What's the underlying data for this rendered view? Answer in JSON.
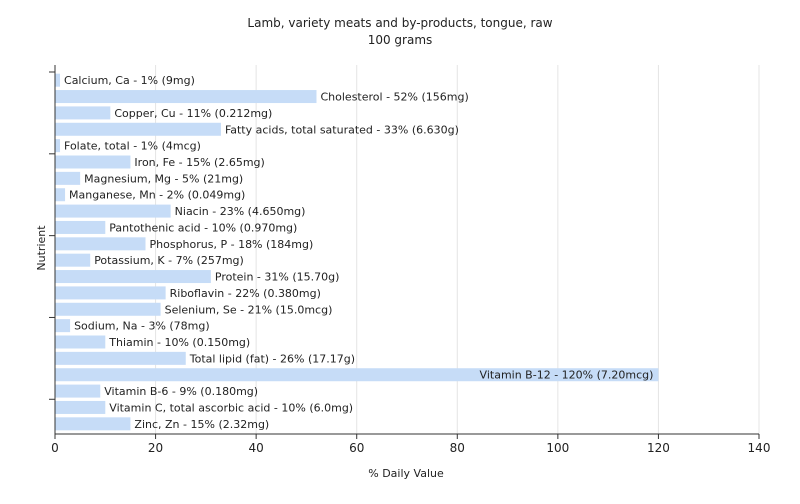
{
  "chart_data": {
    "type": "bar",
    "orientation": "horizontal",
    "title": "Lamb, variety meats and by-products, tongue, raw",
    "subtitle": "100 grams",
    "xlabel": "% Daily Value",
    "ylabel": "Nutrient",
    "xlim": [
      0,
      140
    ],
    "xticks": [
      0,
      20,
      40,
      60,
      80,
      100,
      120,
      140
    ],
    "grid": true,
    "bar_color": "#c6dcf7",
    "categories": [
      "Calcium, Ca - 1% (9mg)",
      "Cholesterol - 52% (156mg)",
      "Copper, Cu - 11% (0.212mg)",
      "Fatty acids, total saturated - 33% (6.630g)",
      "Folate, total - 1% (4mcg)",
      "Iron, Fe - 15% (2.65mg)",
      "Magnesium, Mg - 5% (21mg)",
      "Manganese, Mn - 2% (0.049mg)",
      "Niacin - 23% (4.650mg)",
      "Pantothenic acid - 10% (0.970mg)",
      "Phosphorus, P - 18% (184mg)",
      "Potassium, K - 7% (257mg)",
      "Protein - 31% (15.70g)",
      "Riboflavin - 22% (0.380mg)",
      "Selenium, Se - 21% (15.0mcg)",
      "Sodium, Na - 3% (78mg)",
      "Thiamin - 10% (0.150mg)",
      "Total lipid (fat) - 26% (17.17g)",
      "Vitamin B-12 - 120% (7.20mcg)",
      "Vitamin B-6 - 9% (0.180mg)",
      "Vitamin C, total ascorbic acid - 10% (6.0mg)",
      "Zinc, Zn - 15% (2.32mg)"
    ],
    "values": [
      1,
      52,
      11,
      33,
      1,
      15,
      5,
      2,
      23,
      10,
      18,
      7,
      31,
      22,
      21,
      3,
      10,
      26,
      120,
      9,
      10,
      15
    ]
  }
}
